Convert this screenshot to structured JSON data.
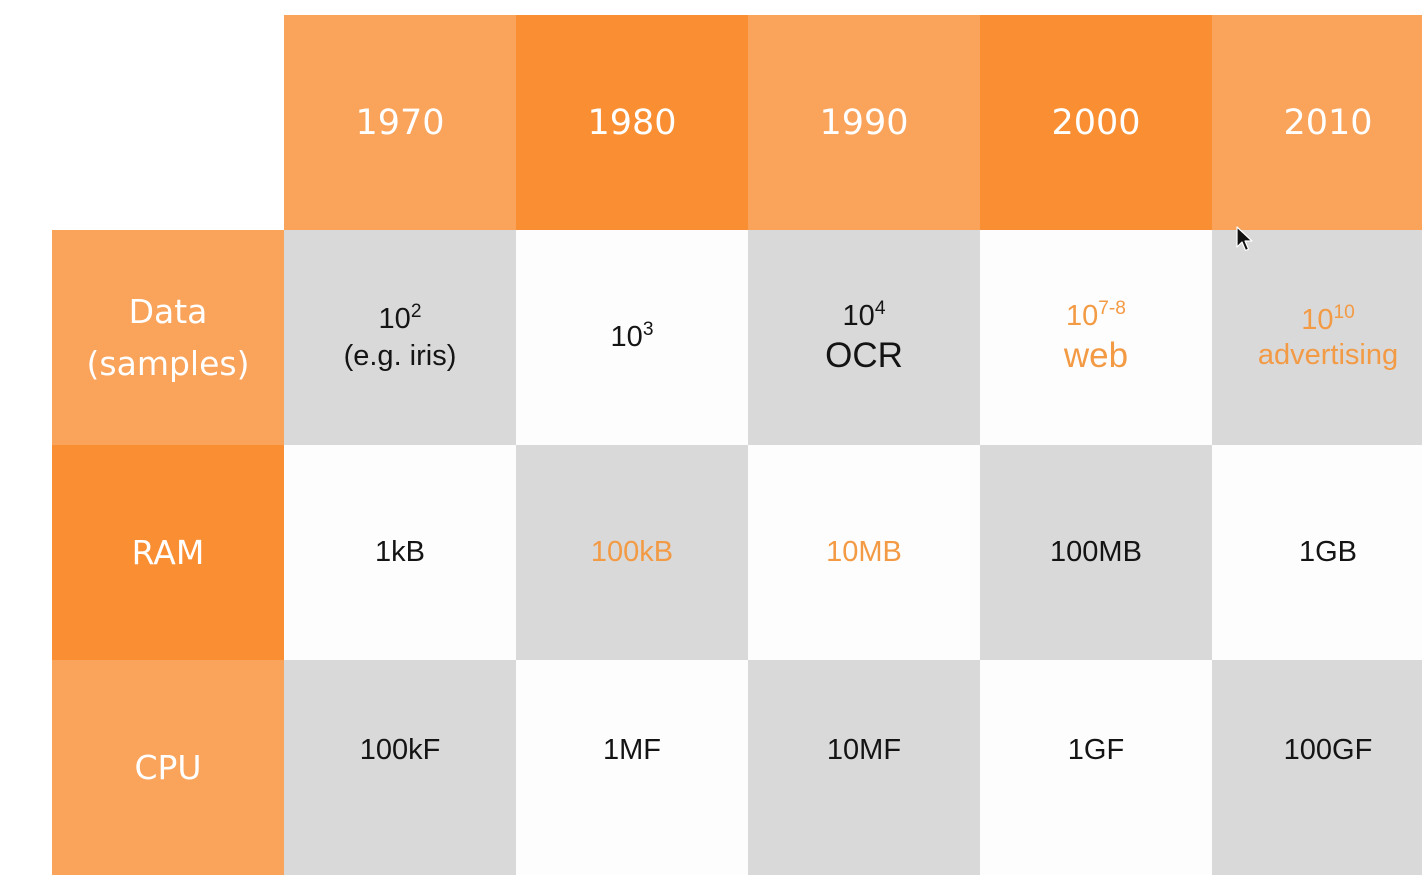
{
  "columns": [
    "1970",
    "1980",
    "1990",
    "2000",
    "2010"
  ],
  "rows": {
    "data": {
      "label_line1": "Data",
      "label_line2": "(samples)",
      "cells": [
        {
          "base": "10",
          "exp": "2",
          "sub": "(e.g. iris)"
        },
        {
          "base": "10",
          "exp": "3",
          "sub": ""
        },
        {
          "base": "10",
          "exp": "4",
          "sub": "OCR"
        },
        {
          "base": "10",
          "exp": "7-8",
          "sub": "web"
        },
        {
          "base": "10",
          "exp": "10",
          "sub": "advertising"
        }
      ]
    },
    "ram": {
      "label": "RAM",
      "cells": [
        "1kB",
        "100kB",
        "10MB",
        "100MB",
        "1GB"
      ]
    },
    "cpu": {
      "label": "CPU",
      "cells": [
        "100kF",
        "1MF",
        "10MF",
        "1GF",
        "100GF"
      ]
    }
  },
  "colors": {
    "header_light": "#f9a35b",
    "header_dark": "#f98e32",
    "cell_grey": "#d9d9d9",
    "cell_white": "#fdfdfd",
    "highlight_text": "#f39a45",
    "text": "#141414"
  },
  "icons": {
    "cursor": "mouse-pointer-icon"
  }
}
